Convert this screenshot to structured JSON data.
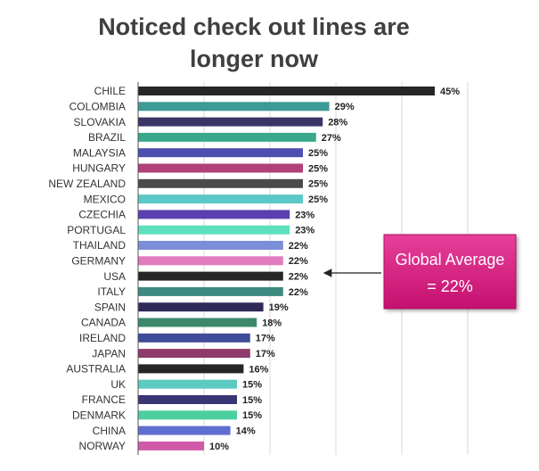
{
  "chart_data": {
    "type": "hbar",
    "title": "Noticed check out lines are longer now",
    "categories": [
      "CHILE",
      "COLOMBIA",
      "SLOVAKIA",
      "BRAZIL",
      "MALAYSIA",
      "HUNGARY",
      "NEW ZEALAND",
      "MEXICO",
      "CZECHIA",
      "PORTUGAL",
      "THAILAND",
      "GERMANY",
      "USA",
      "ITALY",
      "SPAIN",
      "CANADA",
      "IRELAND",
      "JAPAN",
      "AUSTRALIA",
      "UK",
      "FRANCE",
      "DENMARK",
      "CHINA",
      "NORWAY"
    ],
    "values": [
      45,
      29,
      28,
      27,
      25,
      25,
      25,
      25,
      23,
      23,
      22,
      22,
      22,
      22,
      19,
      18,
      17,
      17,
      16,
      15,
      15,
      15,
      14,
      10
    ],
    "value_labels": [
      "45%",
      "29%",
      "28%",
      "27%",
      "25%",
      "25%",
      "25%",
      "25%",
      "23%",
      "23%",
      "22%",
      "22%",
      "22%",
      "22%",
      "19%",
      "18%",
      "17%",
      "17%",
      "16%",
      "15%",
      "15%",
      "15%",
      "14%",
      "10%"
    ],
    "colors": [
      "#262626",
      "#3d9a96",
      "#3a3566",
      "#3aa88a",
      "#4d4fb0",
      "#b0407a",
      "#4a4a4a",
      "#5cc8c8",
      "#5a3fb0",
      "#5ee0bf",
      "#7b8ed8",
      "#e27cc0",
      "#262626",
      "#3d8a80",
      "#2f2a5a",
      "#3a8a6a",
      "#404c9a",
      "#8e3a6a",
      "#262626",
      "#5ccac0",
      "#3a3575",
      "#4ccf9f",
      "#5f6fd0",
      "#d05aa8"
    ],
    "xlim": [
      0,
      50
    ],
    "xticks": [
      0,
      10,
      20,
      30,
      40,
      50
    ],
    "grid": true,
    "annotation": [
      "Global Average",
      "= 22%"
    ]
  }
}
